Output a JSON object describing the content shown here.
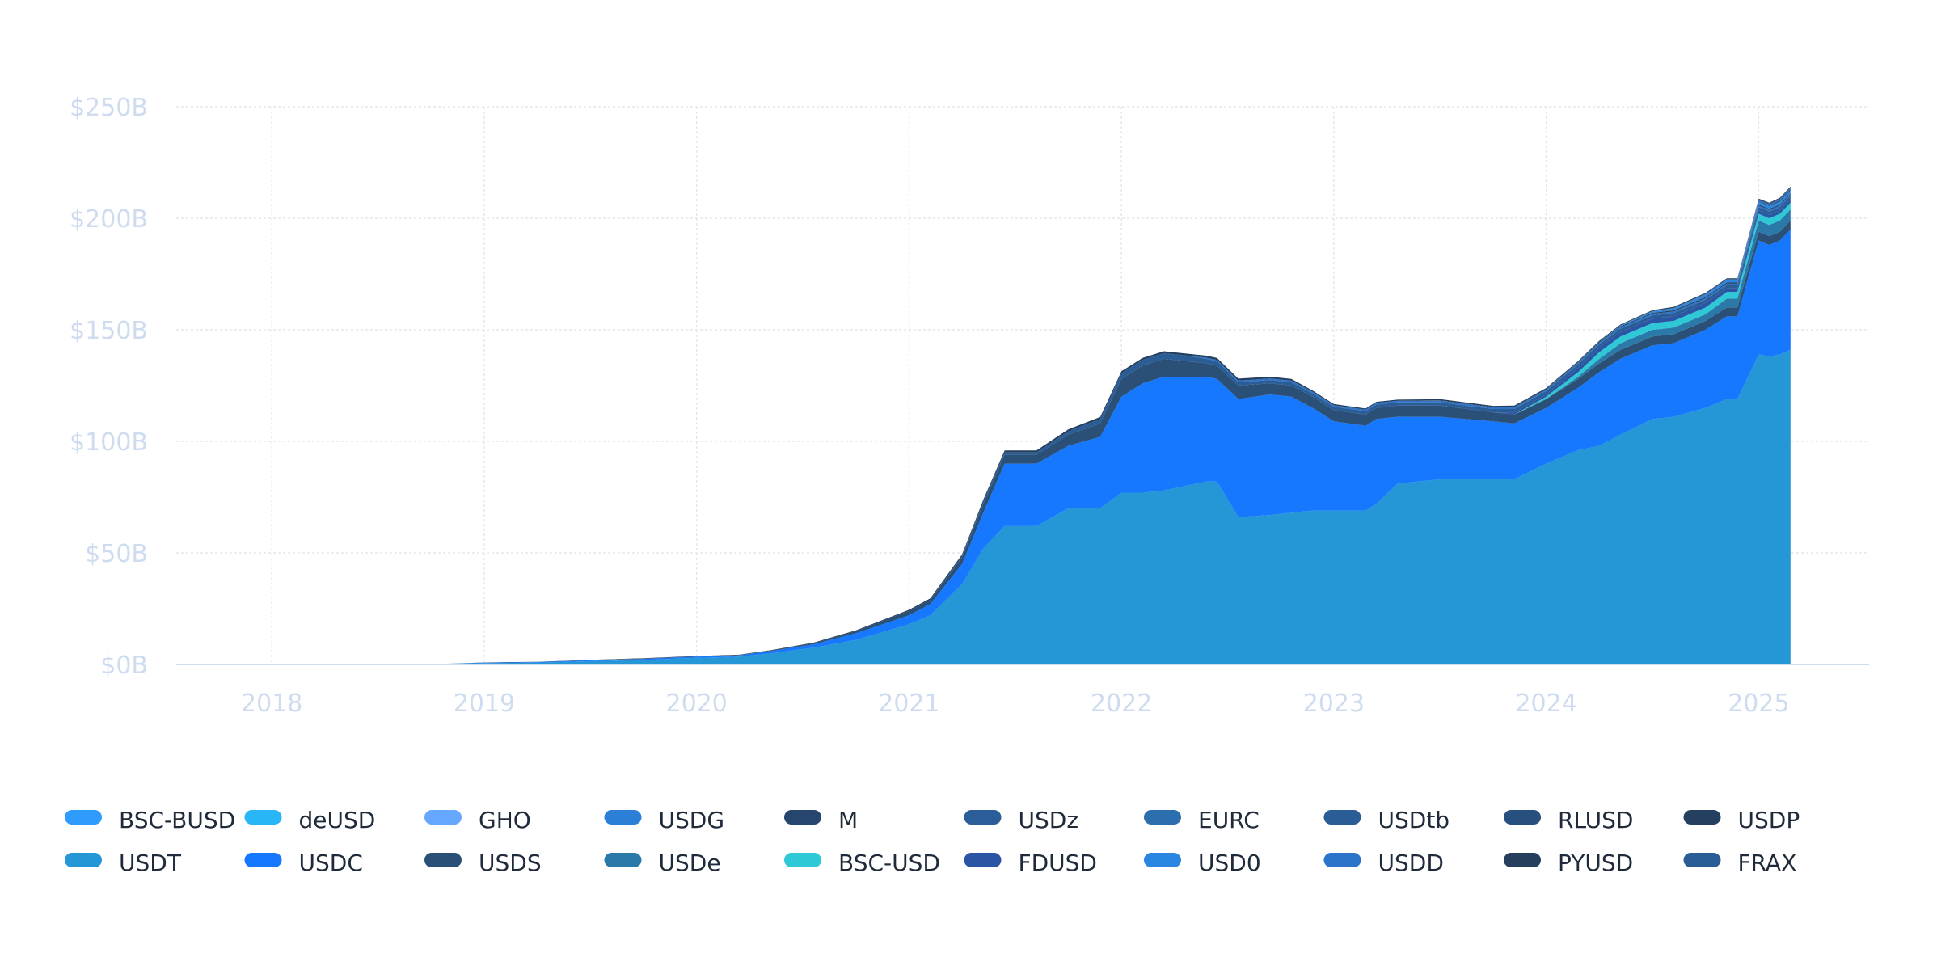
{
  "chart_data": {
    "type": "area",
    "stacked": true,
    "title": "",
    "xlabel": "",
    "ylabel": "",
    "y_ticks": [
      "$0B",
      "$50B",
      "$100B",
      "$150B",
      "$200B",
      "$250B"
    ],
    "x_ticks": [
      "2018",
      "2019",
      "2020",
      "2021",
      "2022",
      "2023",
      "2024",
      "2025"
    ],
    "ylim": [
      0,
      250
    ],
    "xlim": [
      2017.55,
      2025.52
    ],
    "y_unit": "$B",
    "grid": true,
    "legend_position": "bottom",
    "legend": [
      {
        "name": "BSC-BUSD",
        "color": "#2f9bff"
      },
      {
        "name": "deUSD",
        "color": "#29b6f6"
      },
      {
        "name": "GHO",
        "color": "#66a8ff"
      },
      {
        "name": "USDG",
        "color": "#2b7fd6"
      },
      {
        "name": "M",
        "color": "#26466f"
      },
      {
        "name": "USDz",
        "color": "#2b5e98"
      },
      {
        "name": "EURC",
        "color": "#2c6fae"
      },
      {
        "name": "USDtb",
        "color": "#2a5c95"
      },
      {
        "name": "RLUSD",
        "color": "#27507f"
      },
      {
        "name": "USDP",
        "color": "#243f5f"
      },
      {
        "name": "USDT",
        "color": "#2596d6"
      },
      {
        "name": "USDC",
        "color": "#1677ff"
      },
      {
        "name": "USDS",
        "color": "#2a5077"
      },
      {
        "name": "USDe",
        "color": "#2a79a9"
      },
      {
        "name": "BSC-USD",
        "color": "#2ec8d6"
      },
      {
        "name": "FDUSD",
        "color": "#2a55a5"
      },
      {
        "name": "USD0",
        "color": "#2a86e0"
      },
      {
        "name": "USDD",
        "color": "#2d73c9"
      },
      {
        "name": "PYUSD",
        "color": "#253f5c"
      },
      {
        "name": "FRAX",
        "color": "#2a5c95"
      }
    ],
    "x": [
      2017.55,
      2018.0,
      2018.5,
      2018.8,
      2019.0,
      2019.25,
      2019.5,
      2019.75,
      2020.0,
      2020.2,
      2020.35,
      2020.55,
      2020.75,
      2021.0,
      2021.1,
      2021.25,
      2021.35,
      2021.45,
      2021.6,
      2021.75,
      2021.9,
      2022.0,
      2022.1,
      2022.2,
      2022.3,
      2022.4,
      2022.45,
      2022.55,
      2022.7,
      2022.8,
      2022.9,
      2023.0,
      2023.15,
      2023.2,
      2023.3,
      2023.5,
      2023.75,
      2023.85,
      2024.0,
      2024.15,
      2024.25,
      2024.35,
      2024.5,
      2024.6,
      2024.75,
      2024.85,
      2024.9,
      2025.0,
      2025.05,
      2025.1,
      2025.15
    ],
    "series": [
      {
        "name": "USDT",
        "values": [
          0,
          0,
          0,
          0.3,
          0.6,
          0.8,
          1.5,
          2.0,
          3.0,
          3.5,
          5.0,
          7.5,
          11.0,
          18.0,
          22.0,
          36.0,
          52.0,
          62.0,
          62.0,
          70.0,
          70.0,
          77.0,
          77.0,
          78.0,
          80.0,
          82.0,
          82.0,
          66.0,
          67.0,
          68.0,
          69.0,
          69.0,
          69.0,
          72.0,
          81.0,
          83.0,
          83.0,
          83.0,
          90.0,
          96.0,
          98.0,
          103.0,
          110.0,
          111.0,
          115.0,
          119.0,
          119.0,
          139.0,
          138.0,
          139.0,
          141.0
        ]
      },
      {
        "name": "USDC",
        "values": [
          0,
          0,
          0,
          0,
          0.2,
          0.3,
          0.4,
          0.5,
          0.5,
          0.6,
          1.0,
          1.5,
          3.0,
          4.0,
          5.0,
          9.0,
          16.0,
          28.0,
          28.0,
          28.0,
          32.0,
          43.0,
          49.0,
          51.0,
          49.0,
          47.0,
          46.0,
          53.0,
          54.0,
          52.0,
          46.0,
          40.0,
          38.0,
          38.0,
          30.0,
          28.0,
          26.0,
          25.0,
          25.0,
          28.0,
          33.0,
          34.0,
          33.0,
          33.0,
          35.0,
          37.0,
          37.0,
          51.0,
          50.0,
          51.0,
          54.0
        ]
      },
      {
        "name": "USDS",
        "values": [
          0,
          0,
          0,
          0,
          0,
          0,
          0.1,
          0.1,
          0.1,
          0.1,
          0.2,
          0.5,
          1.0,
          2.0,
          2.0,
          3.0,
          4.0,
          4.0,
          4.0,
          5.0,
          6.0,
          8.0,
          8.0,
          8.0,
          7.0,
          6.0,
          6.0,
          6.0,
          5.0,
          5.0,
          5.0,
          5.0,
          5.0,
          5.0,
          5.0,
          5.0,
          4.0,
          4.0,
          4.0,
          4.0,
          4.0,
          4.0,
          4.0,
          4.0,
          4.0,
          4.0,
          4.0,
          4.0,
          4.0,
          4.0,
          4.0
        ]
      },
      {
        "name": "USDe",
        "values": [
          0,
          0,
          0,
          0,
          0,
          0,
          0,
          0,
          0,
          0,
          0,
          0,
          0,
          0,
          0,
          0,
          0,
          0,
          0,
          0,
          0,
          0,
          0,
          0,
          0,
          0,
          0,
          0,
          0,
          0,
          0,
          0,
          0,
          0,
          0,
          0,
          0,
          0,
          0,
          1.0,
          2.0,
          3.0,
          3.0,
          3.0,
          3.0,
          4.0,
          4.0,
          5.0,
          5.0,
          5.0,
          5.0
        ]
      },
      {
        "name": "BSC-USD",
        "values": [
          0,
          0,
          0,
          0,
          0,
          0,
          0,
          0,
          0,
          0,
          0,
          0,
          0,
          0,
          0,
          0,
          0,
          0,
          0,
          0,
          0,
          0,
          0,
          0,
          0,
          0,
          0,
          0,
          0,
          0,
          0,
          0,
          0,
          0,
          0,
          0,
          0,
          0,
          1.0,
          2.0,
          3.0,
          3.0,
          3.0,
          3.0,
          3.0,
          3.0,
          3.0,
          3.0,
          3.0,
          3.0,
          3.0
        ]
      },
      {
        "name": "FDUSD",
        "values": [
          0,
          0,
          0,
          0,
          0,
          0,
          0,
          0,
          0,
          0,
          0,
          0,
          0,
          0,
          0,
          0,
          0,
          0,
          0,
          0,
          0,
          0,
          0,
          0,
          0,
          0,
          0,
          0,
          0,
          0,
          0,
          0,
          0,
          0,
          0,
          0,
          0,
          1.0,
          1.0,
          2.0,
          2.0,
          2.0,
          2.0,
          2.0,
          2.0,
          1.5,
          1.5,
          1.5,
          1.5,
          1.5,
          1.5
        ]
      },
      {
        "name": "FRAX",
        "values": [
          0,
          0,
          0,
          0,
          0,
          0,
          0,
          0,
          0,
          0,
          0,
          0,
          0,
          0,
          0,
          0.5,
          1.0,
          1.0,
          1.0,
          1.5,
          2.0,
          2.5,
          2.5,
          2.5,
          2.5,
          2.0,
          2.0,
          1.5,
          1.5,
          1.5,
          1.5,
          1.5,
          1.5,
          1.5,
          1.5,
          1.5,
          1.5,
          1.5,
          1.5,
          1.5,
          1.5,
          1.5,
          1.5,
          1.5,
          1.5,
          1.5,
          1.5,
          1.5,
          1.5,
          1.5,
          1.5
        ]
      },
      {
        "name": "USDD",
        "values": [
          0,
          0,
          0,
          0,
          0,
          0,
          0,
          0,
          0,
          0,
          0,
          0,
          0,
          0,
          0,
          0,
          0,
          0,
          0,
          0,
          0,
          0,
          0,
          0,
          0,
          0.5,
          0.5,
          0.7,
          0.7,
          0.7,
          0.7,
          0.7,
          0.7,
          0.7,
          0.7,
          0.7,
          0.7,
          0.7,
          0.7,
          0.7,
          0.7,
          0.7,
          0.7,
          0.7,
          0.7,
          0.7,
          0.7,
          0.7,
          0.7,
          0.7,
          0.7
        ]
      },
      {
        "name": "PYUSD",
        "values": [
          0,
          0,
          0,
          0,
          0,
          0,
          0,
          0,
          0,
          0,
          0,
          0,
          0,
          0,
          0,
          0,
          0,
          0,
          0,
          0,
          0,
          0,
          0,
          0,
          0,
          0,
          0,
          0,
          0,
          0,
          0,
          0,
          0,
          0,
          0,
          0.2,
          0.2,
          0.3,
          0.3,
          0.3,
          0.4,
          0.4,
          0.4,
          0.5,
          0.5,
          0.5,
          0.5,
          0.5,
          0.5,
          0.5,
          0.5
        ]
      },
      {
        "name": "USD0",
        "values": [
          0,
          0,
          0,
          0,
          0,
          0,
          0,
          0,
          0,
          0,
          0,
          0,
          0,
          0,
          0,
          0,
          0,
          0,
          0,
          0,
          0,
          0,
          0,
          0,
          0,
          0,
          0,
          0,
          0,
          0,
          0,
          0,
          0,
          0,
          0,
          0,
          0,
          0,
          0,
          0,
          0,
          0.3,
          0.5,
          0.8,
          1.0,
          1.0,
          1.0,
          1.2,
          1.2,
          1.2,
          1.2
        ]
      },
      {
        "name": "USDtb",
        "values": [
          0,
          0,
          0,
          0,
          0,
          0,
          0,
          0,
          0,
          0,
          0,
          0,
          0,
          0,
          0,
          0,
          0,
          0,
          0,
          0,
          0,
          0,
          0,
          0,
          0,
          0,
          0,
          0,
          0,
          0,
          0,
          0,
          0,
          0,
          0,
          0,
          0,
          0,
          0,
          0,
          0,
          0,
          0,
          0,
          0,
          0,
          0,
          0.4,
          0.6,
          0.8,
          0.8
        ]
      },
      {
        "name": "EURC",
        "values": [
          0,
          0,
          0,
          0,
          0,
          0,
          0,
          0,
          0,
          0,
          0,
          0,
          0,
          0,
          0,
          0,
          0,
          0,
          0,
          0,
          0,
          0,
          0,
          0,
          0,
          0,
          0,
          0,
          0,
          0,
          0,
          0,
          0,
          0,
          0,
          0,
          0,
          0,
          0,
          0.1,
          0.1,
          0.1,
          0.1,
          0.1,
          0.1,
          0.1,
          0.1,
          0.1,
          0.1,
          0.1,
          0.1
        ]
      },
      {
        "name": "USDz",
        "values": [
          0,
          0,
          0,
          0,
          0,
          0,
          0,
          0,
          0,
          0,
          0,
          0,
          0,
          0,
          0,
          0,
          0,
          0,
          0,
          0,
          0,
          0,
          0,
          0,
          0,
          0,
          0,
          0,
          0,
          0,
          0,
          0,
          0,
          0,
          0,
          0,
          0,
          0,
          0,
          0,
          0,
          0,
          0.2,
          0.3,
          0.4,
          0.4,
          0.4,
          0.5,
          0.5,
          0.5,
          0.5
        ]
      },
      {
        "name": "USDP",
        "values": [
          0,
          0,
          0,
          0,
          0.1,
          0.1,
          0.1,
          0.2,
          0.2,
          0.2,
          0.2,
          0.3,
          0.3,
          0.5,
          0.6,
          0.8,
          0.9,
          0.9,
          0.9,
          0.9,
          0.9,
          0.9,
          0.9,
          0.9,
          0.9,
          0.9,
          0.9,
          0.9,
          0.8,
          0.8,
          0.6,
          0.5,
          0.5,
          0.5,
          0.5,
          0.5,
          0.5,
          0.5,
          0.4,
          0.4,
          0.4,
          0.4,
          0.4,
          0.4,
          0.4,
          0.4,
          0.4,
          0.4,
          0.4,
          0.4,
          0.4
        ]
      }
    ]
  }
}
